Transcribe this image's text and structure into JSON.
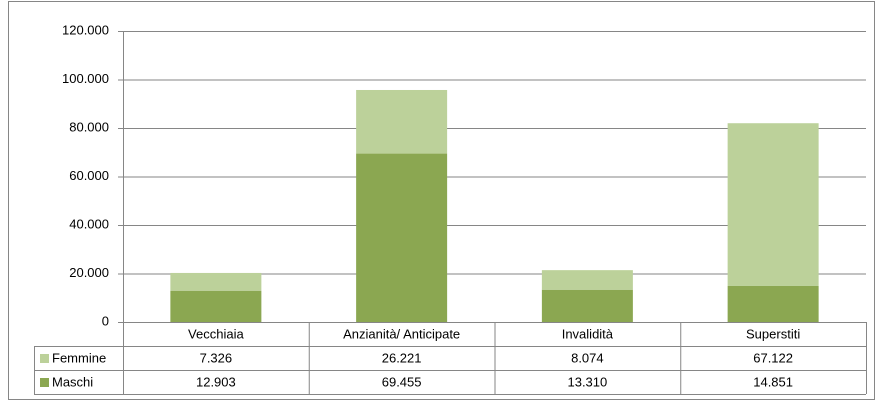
{
  "chart_data": {
    "type": "stacked_bar",
    "categories": [
      "Vecchiaia",
      "Anzianità/ Anticipate",
      "Invalidità",
      "Superstiti"
    ],
    "series": [
      {
        "name": "Femmine",
        "color": "#bcd19a",
        "values": [
          7326,
          26221,
          8074,
          67122
        ],
        "value_labels": [
          "7.326",
          "26.221",
          "8.074",
          "67.122"
        ]
      },
      {
        "name": "Maschi",
        "color": "#8ba751",
        "values": [
          12903,
          69455,
          13310,
          14851
        ],
        "value_labels": [
          "12.903",
          "69.455",
          "13.310",
          "14.851"
        ]
      }
    ],
    "ylim": [
      0,
      120000
    ],
    "yticks": [
      0,
      {
        "value": 20000,
        "label": "20.000"
      },
      {
        "value": 40000,
        "label": "40.000"
      },
      {
        "value": 60000,
        "label": "60.000"
      },
      {
        "value": 80000,
        "label": "80.000"
      },
      {
        "value": 100000,
        "label": "100.000"
      },
      {
        "value": 120000,
        "label": "120.000"
      }
    ],
    "grid": true
  }
}
